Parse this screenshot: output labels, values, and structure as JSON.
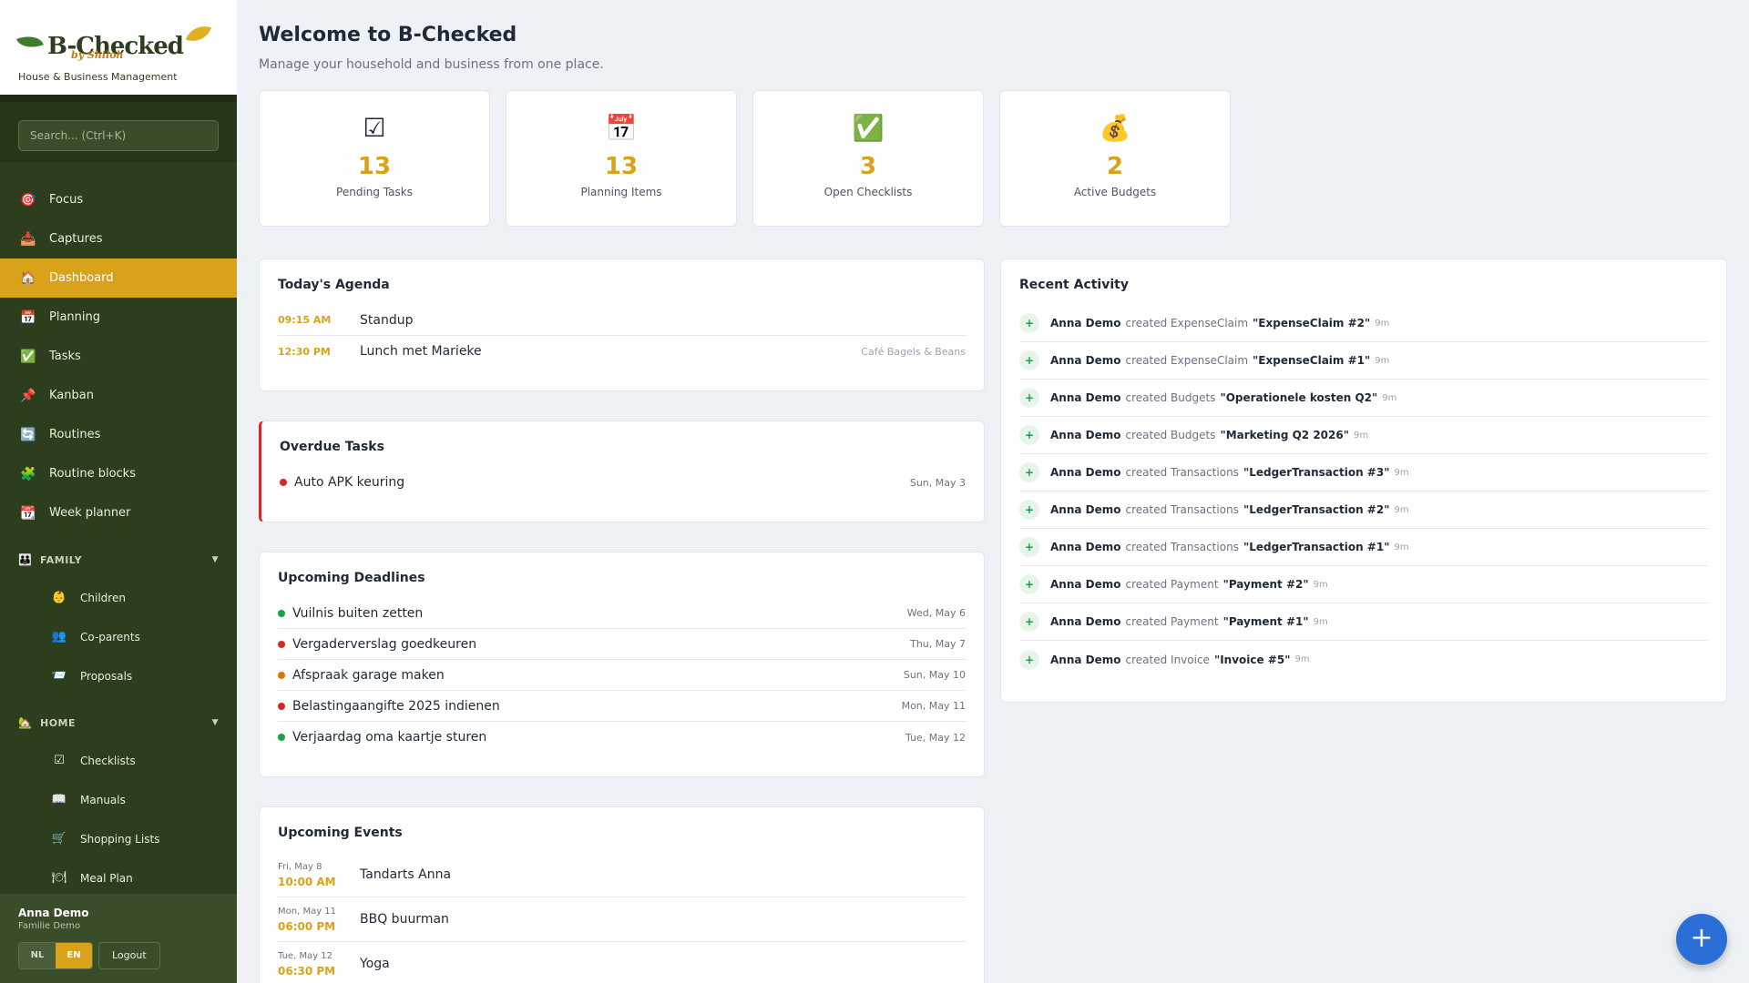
{
  "brand": {
    "name": "B-Checked",
    "by": "by Shiloh",
    "tagline": "House & Business Management"
  },
  "search": {
    "placeholder": "Search... (Ctrl+K)"
  },
  "nav": [
    {
      "label": "Focus",
      "icon": "🎯"
    },
    {
      "label": "Captures",
      "icon": "📥"
    },
    {
      "label": "Dashboard",
      "icon": "🏠"
    },
    {
      "label": "Planning",
      "icon": "📅"
    },
    {
      "label": "Tasks",
      "icon": "✅"
    },
    {
      "label": "Kanban",
      "icon": "📌"
    },
    {
      "label": "Routines",
      "icon": "🔄"
    },
    {
      "label": "Routine blocks",
      "icon": "🧩"
    },
    {
      "label": "Week planner",
      "icon": "📆"
    }
  ],
  "sections": {
    "family": {
      "label": "FAMILY",
      "icon": "👪",
      "items": [
        {
          "label": "Children",
          "icon": "👶"
        },
        {
          "label": "Co-parents",
          "icon": "👥"
        },
        {
          "label": "Proposals",
          "icon": "📨"
        }
      ]
    },
    "home": {
      "label": "HOME",
      "icon": "🏡",
      "items": [
        {
          "label": "Checklists",
          "icon": "☑"
        },
        {
          "label": "Manuals",
          "icon": "📖"
        },
        {
          "label": "Shopping Lists",
          "icon": "🛒"
        },
        {
          "label": "Meal Plan",
          "icon": "🍽"
        }
      ]
    }
  },
  "user": {
    "name": "Anna Demo",
    "org": "Familie Demo",
    "lang_nl": "NL",
    "lang_en": "EN",
    "logout": "Logout"
  },
  "header": {
    "title": "Welcome to B-Checked",
    "subtitle": "Manage your household and business from one place."
  },
  "stats": [
    {
      "icon": "☑",
      "value": "13",
      "label": "Pending Tasks"
    },
    {
      "icon": "📅",
      "value": "13",
      "label": "Planning Items"
    },
    {
      "icon": "✅",
      "value": "3",
      "label": "Open Checklists"
    },
    {
      "icon": "💰",
      "value": "2",
      "label": "Active Budgets"
    }
  ],
  "agenda": {
    "title": "Today's Agenda",
    "items": [
      {
        "time": "09:15 AM",
        "name": "Standup",
        "location": ""
      },
      {
        "time": "12:30 PM",
        "name": "Lunch met Marieke",
        "location": "Café Bagels & Beans"
      }
    ]
  },
  "overdue": {
    "title": "Overdue Tasks",
    "items": [
      {
        "name": "Auto APK keuring",
        "date": "Sun, May 3",
        "color": "#dc2626"
      }
    ]
  },
  "deadlines": {
    "title": "Upcoming Deadlines",
    "items": [
      {
        "name": "Vuilnis buiten zetten",
        "date": "Wed, May 6",
        "color": "#16a34a"
      },
      {
        "name": "Vergaderverslag goedkeuren",
        "date": "Thu, May 7",
        "color": "#dc2626"
      },
      {
        "name": "Afspraak garage maken",
        "date": "Sun, May 10",
        "color": "#d97706"
      },
      {
        "name": "Belastingaangifte 2025 indienen",
        "date": "Mon, May 11",
        "color": "#dc2626"
      },
      {
        "name": "Verjaardag oma kaartje sturen",
        "date": "Tue, May 12",
        "color": "#16a34a"
      }
    ]
  },
  "events": {
    "title": "Upcoming Events",
    "items": [
      {
        "date": "Fri, May 8",
        "time": "10:00 AM",
        "name": "Tandarts Anna"
      },
      {
        "date": "Mon, May 11",
        "time": "06:00 PM",
        "name": "BBQ buurman"
      },
      {
        "date": "Tue, May 12",
        "time": "06:30 PM",
        "name": "Yoga"
      }
    ]
  },
  "activity": {
    "title": "Recent Activity",
    "items": [
      {
        "who": "Anna Demo",
        "verb": "created ExpenseClaim",
        "what": "\"ExpenseClaim #2\"",
        "ago": "9m"
      },
      {
        "who": "Anna Demo",
        "verb": "created ExpenseClaim",
        "what": "\"ExpenseClaim #1\"",
        "ago": "9m"
      },
      {
        "who": "Anna Demo",
        "verb": "created Budgets",
        "what": "\"Operationele kosten Q2\"",
        "ago": "9m"
      },
      {
        "who": "Anna Demo",
        "verb": "created Budgets",
        "what": "\"Marketing Q2 2026\"",
        "ago": "9m"
      },
      {
        "who": "Anna Demo",
        "verb": "created Transactions",
        "what": "\"LedgerTransaction #3\"",
        "ago": "9m"
      },
      {
        "who": "Anna Demo",
        "verb": "created Transactions",
        "what": "\"LedgerTransaction #2\"",
        "ago": "9m"
      },
      {
        "who": "Anna Demo",
        "verb": "created Transactions",
        "what": "\"LedgerTransaction #1\"",
        "ago": "9m"
      },
      {
        "who": "Anna Demo",
        "verb": "created Payment",
        "what": "\"Payment #2\"",
        "ago": "9m"
      },
      {
        "who": "Anna Demo",
        "verb": "created Payment",
        "what": "\"Payment #1\"",
        "ago": "9m"
      },
      {
        "who": "Anna Demo",
        "verb": "created Invoice",
        "what": "\"Invoice #5\"",
        "ago": "9m"
      }
    ]
  },
  "fab": {
    "label": "+"
  },
  "colors": {
    "accent": "#d9a21a",
    "sidebar": "#2d3e1f",
    "fab": "#2b6fd6"
  }
}
